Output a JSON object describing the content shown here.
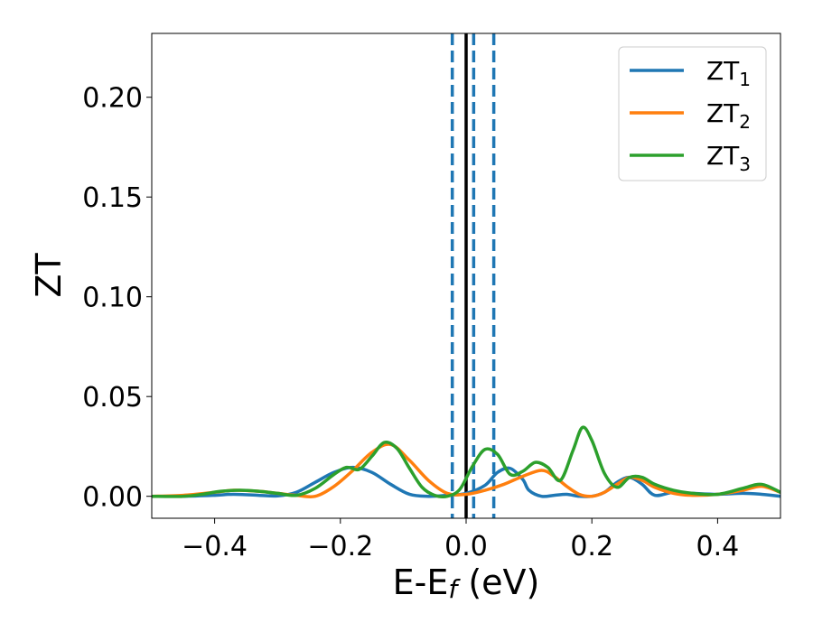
{
  "chart_data": {
    "type": "line",
    "xlabel": "E-E",
    "xlabel_sub": "f",
    "xlabel_unit": " (eV)",
    "ylabel": "ZT",
    "xlim": [
      -0.5,
      0.5
    ],
    "ylim": [
      -0.011,
      0.232
    ],
    "xticks": [
      -0.4,
      -0.2,
      0.0,
      0.2,
      0.4
    ],
    "xtick_labels": [
      "−0.4",
      "−0.2",
      "0.0",
      "0.2",
      "0.4"
    ],
    "yticks": [
      0.0,
      0.05,
      0.1,
      0.15,
      0.2
    ],
    "ytick_labels": [
      "0.00",
      "0.05",
      "0.10",
      "0.15",
      "0.20"
    ],
    "grid": false,
    "legend_placement": "top-right",
    "vertical_lines": [
      {
        "x": -0.022,
        "style": "dashed",
        "color": "#1f77b4"
      },
      {
        "x": 0.0,
        "style": "solid",
        "color": "#000000"
      },
      {
        "x": 0.012,
        "style": "dashed",
        "color": "#1f77b4"
      },
      {
        "x": 0.044,
        "style": "dashed",
        "color": "#1f77b4"
      }
    ],
    "series": [
      {
        "name": "ZT",
        "name_sub": "1",
        "color": "#1f77b4",
        "x": [
          -0.5,
          -0.45,
          -0.4,
          -0.37,
          -0.33,
          -0.3,
          -0.27,
          -0.24,
          -0.21,
          -0.18,
          -0.15,
          -0.12,
          -0.09,
          -0.06,
          -0.03,
          0.0,
          0.03,
          0.05,
          0.07,
          0.09,
          0.1,
          0.12,
          0.14,
          0.16,
          0.18,
          0.2,
          0.22,
          0.24,
          0.26,
          0.28,
          0.3,
          0.33,
          0.36,
          0.4,
          0.44,
          0.47,
          0.5
        ],
        "y": [
          0.0,
          0.0,
          0.0005,
          0.001,
          0.0005,
          0.0002,
          0.002,
          0.007,
          0.012,
          0.0145,
          0.012,
          0.006,
          0.001,
          0.0,
          0.0005,
          0.0015,
          0.0055,
          0.012,
          0.014,
          0.0085,
          0.003,
          0.0,
          0.0005,
          0.001,
          0.0,
          0.0,
          0.002,
          0.007,
          0.0095,
          0.006,
          0.0005,
          0.002,
          0.0015,
          0.001,
          0.0015,
          0.001,
          0.0
        ]
      },
      {
        "name": "ZT",
        "name_sub": "2",
        "color": "#ff7f0e",
        "x": [
          -0.5,
          -0.45,
          -0.4,
          -0.37,
          -0.33,
          -0.3,
          -0.27,
          -0.24,
          -0.21,
          -0.18,
          -0.15,
          -0.12,
          -0.09,
          -0.06,
          -0.03,
          0.0,
          0.03,
          0.06,
          0.09,
          0.12,
          0.14,
          0.16,
          0.18,
          0.2,
          0.22,
          0.24,
          0.26,
          0.28,
          0.3,
          0.33,
          0.36,
          0.4,
          0.44,
          0.47,
          0.5
        ],
        "y": [
          0.0,
          0.0005,
          0.002,
          0.003,
          0.0025,
          0.0015,
          0.0005,
          0.0,
          0.005,
          0.013,
          0.022,
          0.026,
          0.018,
          0.008,
          0.0015,
          0.001,
          0.003,
          0.006,
          0.01,
          0.013,
          0.01,
          0.005,
          0.001,
          0.0,
          0.002,
          0.006,
          0.0095,
          0.008,
          0.0045,
          0.0015,
          0.0005,
          0.001,
          0.003,
          0.005,
          0.002
        ]
      },
      {
        "name": "ZT",
        "name_sub": "3",
        "color": "#2ca02c",
        "x": [
          -0.5,
          -0.45,
          -0.42,
          -0.39,
          -0.36,
          -0.33,
          -0.3,
          -0.27,
          -0.24,
          -0.21,
          -0.19,
          -0.17,
          -0.15,
          -0.13,
          -0.11,
          -0.09,
          -0.07,
          -0.05,
          -0.03,
          -0.01,
          0.01,
          0.03,
          0.05,
          0.07,
          0.09,
          0.11,
          0.13,
          0.15,
          0.17,
          0.185,
          0.2,
          0.22,
          0.24,
          0.26,
          0.28,
          0.3,
          0.33,
          0.36,
          0.4,
          0.44,
          0.47,
          0.5
        ],
        "y": [
          0.0,
          0.0,
          0.001,
          0.0025,
          0.003,
          0.0025,
          0.0015,
          0.0005,
          0.004,
          0.011,
          0.0145,
          0.0135,
          0.02,
          0.027,
          0.024,
          0.014,
          0.0045,
          0.0005,
          0.0,
          0.0035,
          0.015,
          0.0235,
          0.021,
          0.011,
          0.0125,
          0.017,
          0.0145,
          0.008,
          0.023,
          0.0345,
          0.028,
          0.0115,
          0.0045,
          0.0095,
          0.0095,
          0.006,
          0.003,
          0.0015,
          0.001,
          0.004,
          0.006,
          0.002
        ]
      }
    ]
  }
}
